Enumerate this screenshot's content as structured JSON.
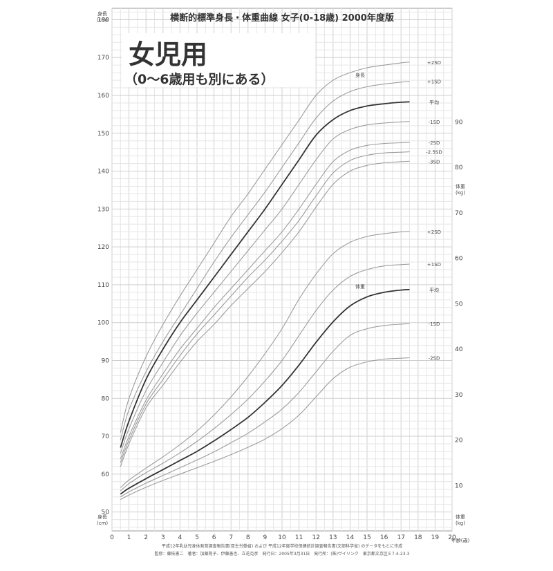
{
  "chart_data": {
    "type": "line",
    "title": "横断的標準身長・体重曲線 女子(0-18歳) 2000年度版",
    "headline": "女児用",
    "subheadline": "（0～6歳用も別にある）",
    "x_label": "年齢(歳)",
    "x_ticks": [
      0,
      1,
      2,
      3,
      4,
      5,
      6,
      7,
      8,
      9,
      10,
      11,
      12,
      13,
      14,
      15,
      16,
      17,
      18,
      19,
      20
    ],
    "x_range": [
      0,
      20
    ],
    "height_axis": {
      "label": "身長(cm)",
      "range": [
        45,
        183
      ],
      "ticks": [
        50,
        60,
        70,
        80,
        90,
        100,
        110,
        120,
        130,
        140,
        150,
        160,
        170,
        180
      ]
    },
    "weight_axis": {
      "label": "体重(kg)",
      "range": [
        0,
        115
      ],
      "ticks": [
        10,
        20,
        30,
        40,
        50,
        60,
        70,
        80,
        90
      ]
    },
    "grid": true,
    "height_group_label": "身長",
    "weight_group_label": "体重",
    "height_series": [
      {
        "name": "+2SD",
        "label": "+2SD",
        "emphasis": false,
        "x": [
          0.5,
          1,
          2,
          3,
          4,
          5,
          6,
          7,
          8,
          9,
          10,
          11,
          12,
          13,
          14,
          15,
          16,
          17,
          17.5
        ],
        "y": [
          71,
          80,
          91,
          99.5,
          107,
          114,
          121,
          128,
          134,
          140.5,
          147,
          153.5,
          160,
          164,
          166,
          167.3,
          168,
          168.6,
          168.8
        ]
      },
      {
        "name": "+1SD",
        "label": "+1SD",
        "emphasis": false,
        "x": [
          0.5,
          1,
          2,
          3,
          4,
          5,
          6,
          7,
          8,
          9,
          10,
          11,
          12,
          13,
          14,
          15,
          16,
          17,
          17.5
        ],
        "y": [
          69,
          77,
          87,
          95,
          102,
          109,
          116,
          122.5,
          128.5,
          134.5,
          141,
          147.5,
          154,
          158.5,
          161,
          162.3,
          163,
          163.5,
          163.7
        ]
      },
      {
        "name": "平均",
        "label": "平均",
        "emphasis": true,
        "x": [
          0.5,
          1,
          2,
          3,
          4,
          5,
          6,
          7,
          8,
          9,
          10,
          11,
          12,
          13,
          14,
          15,
          16,
          17,
          17.5
        ],
        "y": [
          67,
          74,
          85,
          93,
          100,
          106,
          112,
          118,
          124,
          130,
          136.5,
          143,
          149.5,
          153.6,
          156,
          157.2,
          157.8,
          158.2,
          158.3
        ]
      },
      {
        "name": "-1SD",
        "label": "-1SD",
        "emphasis": false,
        "x": [
          0.5,
          1,
          2,
          3,
          4,
          5,
          6,
          7,
          8,
          9,
          10,
          11,
          12,
          13,
          14,
          15,
          16,
          17,
          17.5
        ],
        "y": [
          65.5,
          72,
          82,
          89.5,
          96.5,
          102.5,
          108,
          113.5,
          119,
          124.5,
          130,
          136.5,
          143,
          148.5,
          151,
          152.2,
          152.7,
          153,
          153.1
        ]
      },
      {
        "name": "-2SD",
        "label": "-2SD",
        "emphasis": false,
        "x": [
          0.5,
          1,
          2,
          3,
          4,
          5,
          6,
          7,
          8,
          9,
          10,
          11,
          12,
          13,
          14,
          15,
          16,
          17,
          17.5
        ],
        "y": [
          64,
          70,
          79.5,
          86.5,
          93,
          98.5,
          104,
          109,
          114,
          119,
          124,
          130,
          136.5,
          142.5,
          145.5,
          146.8,
          147.3,
          147.5,
          147.6
        ]
      },
      {
        "name": "-2.5SD",
        "label": "-2.5SD",
        "emphasis": false,
        "x": [
          0.5,
          1,
          2,
          3,
          4,
          5,
          6,
          7,
          8,
          9,
          10,
          11,
          12,
          13,
          14,
          15,
          16,
          17,
          17.5
        ],
        "y": [
          63,
          69,
          78.5,
          85,
          91.3,
          97,
          102,
          107,
          112,
          116.5,
          121.5,
          127,
          133.5,
          139.5,
          142.8,
          144.2,
          144.8,
          145,
          145.1
        ]
      },
      {
        "name": "-3SD",
        "label": "-3SD",
        "emphasis": false,
        "x": [
          0.5,
          1,
          2,
          3,
          4,
          5,
          6,
          7,
          8,
          9,
          10,
          11,
          12,
          13,
          14,
          15,
          16,
          17,
          17.5
        ],
        "y": [
          62,
          68,
          77.5,
          83.5,
          89.5,
          95,
          99.5,
          104.5,
          109,
          113.5,
          118.5,
          124,
          130.5,
          136.5,
          140,
          141.5,
          142.2,
          142.5,
          142.6
        ]
      }
    ],
    "weight_series": [
      {
        "name": "+2SD",
        "label": "+2SD",
        "emphasis": false,
        "x": [
          0.5,
          1,
          2,
          3,
          4,
          5,
          6,
          7,
          8,
          9,
          10,
          11,
          12,
          13,
          14,
          15,
          16,
          17,
          17.5
        ],
        "y": [
          9.5,
          11.2,
          13.8,
          16.3,
          19,
          22,
          25.5,
          29.5,
          34,
          39,
          44.5,
          51,
          56.5,
          61,
          63.5,
          64.8,
          65.4,
          65.8,
          65.9
        ]
      },
      {
        "name": "+1SD",
        "label": "+1SD",
        "emphasis": false,
        "x": [
          0.5,
          1,
          2,
          3,
          4,
          5,
          6,
          7,
          8,
          9,
          10,
          11,
          12,
          13,
          14,
          15,
          16,
          17,
          17.5
        ],
        "y": [
          8.8,
          10.4,
          12.8,
          14.9,
          17.2,
          19.7,
          22.5,
          25.6,
          29,
          33,
          37.5,
          43,
          48.5,
          53,
          56,
          57.5,
          58.3,
          58.6,
          58.7
        ]
      },
      {
        "name": "平均",
        "label": "平均",
        "emphasis": true,
        "x": [
          0.5,
          1,
          2,
          3,
          4,
          5,
          6,
          7,
          8,
          9,
          10,
          11,
          12,
          13,
          14,
          15,
          16,
          17,
          17.5
        ],
        "y": [
          8.1,
          9.4,
          11.5,
          13.5,
          15.5,
          17.5,
          19.8,
          22.3,
          25,
          28.3,
          32,
          36.5,
          41.5,
          46,
          49.5,
          51.5,
          52.5,
          53,
          53.1
        ]
      },
      {
        "name": "-1SD",
        "label": "-1SD",
        "emphasis": false,
        "x": [
          0.5,
          1,
          2,
          3,
          4,
          5,
          6,
          7,
          8,
          9,
          10,
          11,
          12,
          13,
          14,
          15,
          16,
          17,
          17.5
        ],
        "y": [
          7.5,
          8.6,
          10.5,
          12.2,
          13.9,
          15.6,
          17.4,
          19.4,
          21.5,
          24,
          26.8,
          30.5,
          35,
          39.5,
          43,
          44.5,
          45.2,
          45.5,
          45.6
        ]
      },
      {
        "name": "-2SD",
        "label": "-2SD",
        "emphasis": false,
        "x": [
          0.5,
          1,
          2,
          3,
          4,
          5,
          6,
          7,
          8,
          9,
          10,
          11,
          12,
          13,
          14,
          15,
          16,
          17,
          17.5
        ],
        "y": [
          6.9,
          7.9,
          9.6,
          11.1,
          12.5,
          13.9,
          15.3,
          16.8,
          18.4,
          20.2,
          22.5,
          25.5,
          29.5,
          33.5,
          36,
          37.2,
          37.8,
          38,
          38.1
        ]
      }
    ],
    "footer_line1": "平成12年乳幼児身体発育調査報告書(厚生労働省) および 平成12年度学校保健統計調査報告書(文部科学省) のデータをもとに作成",
    "footer_line2": "監修：藤枝憲二　著者：加藤則子、伊藤善也、立花克彦　発行日：2005年3月31日　発行所：(株)ヴイリンク　東京都文京区Ｅ7-4-23-3"
  }
}
